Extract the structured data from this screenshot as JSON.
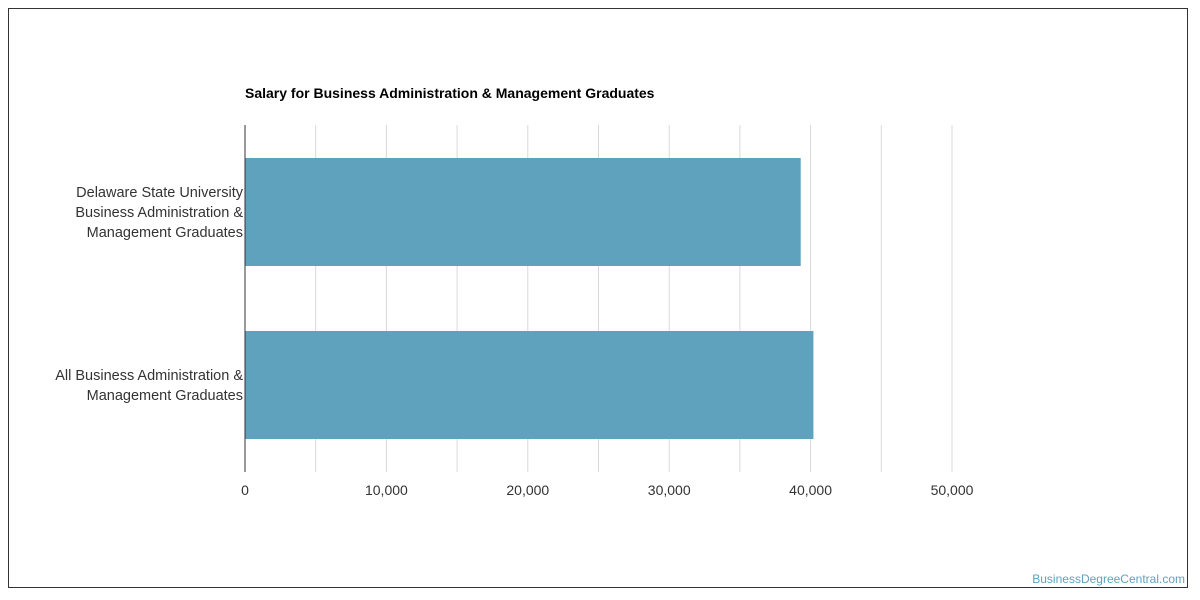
{
  "chart_data": {
    "type": "bar",
    "orientation": "horizontal",
    "title": "Salary for Business Administration & Management Graduates",
    "categories": [
      [
        "Delaware State University",
        "Business Administration &",
        "Management Graduates"
      ],
      [
        "All Business Administration &",
        "Management Graduates"
      ]
    ],
    "values": [
      39300,
      40200
    ],
    "xlim": [
      0,
      50000
    ],
    "xticks": [
      0,
      10000,
      20000,
      30000,
      40000,
      50000
    ],
    "xtick_labels": [
      "0",
      "10,000",
      "20,000",
      "30,000",
      "40,000",
      "50,000"
    ],
    "grid": true,
    "bar_color": "#5ea2be",
    "grid_color": "#d9d9d9",
    "axis_color": "#333333"
  },
  "watermark": "BusinessDegreeCentral.com"
}
